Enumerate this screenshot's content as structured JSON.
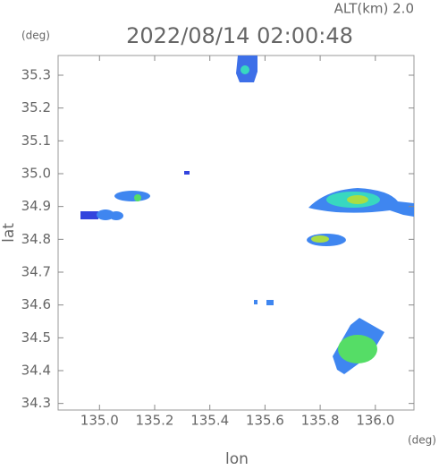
{
  "chart_data": {
    "type": "map",
    "title": "2022/08/14 02:00:48",
    "altitude_label": "ALT(km)  2.0",
    "y_unit": "(deg)",
    "x_unit": "(deg)",
    "xlabel": "lon",
    "ylabel": "lat",
    "xlim": [
      134.85,
      136.14
    ],
    "ylim": [
      34.28,
      35.36
    ],
    "xticks": [
      {
        "value": 135,
        "label": "135.0"
      },
      135.2,
      135.4,
      135.6,
      135.8,
      {
        "value": 136,
        "label": "136.0"
      }
    ],
    "yticks": [
      34.3,
      34.4,
      34.5,
      34.6,
      34.7,
      34.8,
      34.9,
      {
        "value": 35,
        "label": "35.0"
      },
      35.1,
      35.2,
      35.3
    ],
    "grid": false
  }
}
